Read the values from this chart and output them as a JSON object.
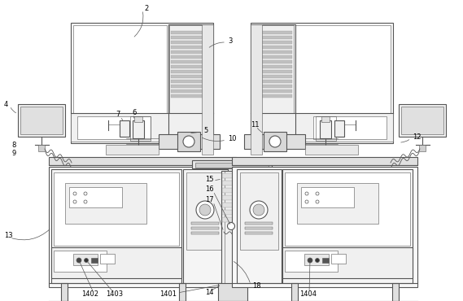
{
  "bg_color": "#ffffff",
  "lc": "#555555",
  "lw": 0.8,
  "tlw": 0.4,
  "fs": 6.0
}
